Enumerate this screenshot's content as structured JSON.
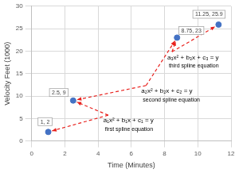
{
  "chart_data": {
    "type": "scatter",
    "x_label": "Time (Minutes)",
    "y_label": "Velocity Feet (1000)",
    "x": [
      1,
      2.5,
      8.75,
      11.25
    ],
    "values": [
      2,
      9,
      23,
      25.9
    ],
    "data_labels": true,
    "value_labels": [
      "1, 2",
      "2.5, 9",
      "8.75, 23",
      "11.25, 25.9"
    ],
    "color": "#4472c4",
    "marker": "circle",
    "xlim": [
      0,
      12
    ],
    "xticks": [
      0,
      2,
      4,
      6,
      8,
      10,
      12
    ],
    "ylim": [
      0,
      30
    ],
    "yticks": [
      0,
      5,
      10,
      15,
      20,
      25,
      30
    ],
    "grid": true,
    "annotations": [
      {
        "equation": "a₁x² + b₁x + c₁ = y",
        "label": "first spline equation"
      },
      {
        "equation": "a₂x² + b₂x + c₂ = y",
        "label": "second spline equation"
      },
      {
        "equation": "a₃x² + b₃x + c₃ = y",
        "label": "third spline equation"
      }
    ]
  }
}
